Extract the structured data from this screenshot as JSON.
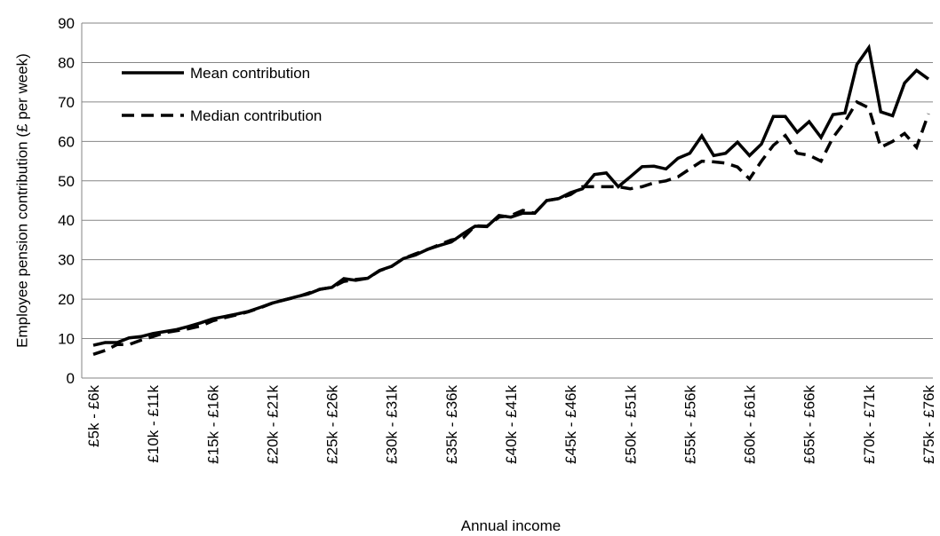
{
  "chart_data": {
    "type": "line",
    "y_label": "Employee pension contribution (£ per week)",
    "x_label": "Annual income",
    "categories": [
      "£5k - £6k",
      null,
      null,
      null,
      null,
      "£10k - £11k",
      null,
      null,
      null,
      null,
      "£15k - £16k",
      null,
      null,
      null,
      null,
      "£20k - £21k",
      null,
      null,
      null,
      null,
      "£25k - £26k",
      null,
      null,
      null,
      null,
      "£30k - £31k",
      null,
      null,
      null,
      null,
      "£35k - £36k",
      null,
      null,
      null,
      null,
      "£40k - £41k",
      null,
      null,
      null,
      null,
      "£45k - £46k",
      null,
      null,
      null,
      null,
      "£50k - £51k",
      null,
      null,
      null,
      null,
      "£55k - £56k",
      null,
      null,
      null,
      null,
      "£60k - £61k",
      null,
      null,
      null,
      null,
      "£65k - £66k",
      null,
      null,
      null,
      null,
      "£70k - £71k",
      null,
      null,
      null,
      null,
      "£75k - £76k"
    ],
    "series": [
      {
        "name": "Mean contribution",
        "color": "#000000",
        "dash": "solid",
        "values": [
          8.3,
          9,
          9,
          10.2,
          10.5,
          11.3,
          11.8,
          12.3,
          13.1,
          14,
          15,
          15.6,
          16.2,
          16.9,
          17.9,
          19,
          19.8,
          20.6,
          21.3,
          22.5,
          23,
          25.2,
          24.8,
          25.3,
          27.3,
          28.3,
          30.3,
          31.2,
          32.6,
          33.6,
          34.5,
          36.6,
          38.5,
          38.4,
          41.2,
          40.8,
          41.8,
          41.8,
          45,
          45.5,
          47,
          48,
          51.6,
          52,
          48.5,
          51,
          53.6,
          53.7,
          53,
          55.7,
          57,
          61.4,
          56.4,
          57,
          59.8,
          56.4,
          59.3,
          66.3,
          66.3,
          62.3,
          65,
          61,
          66.8,
          67.2,
          79.5,
          83.8,
          67.5,
          66.5,
          74.8,
          78,
          75.8
        ]
      },
      {
        "name": "Median contribution",
        "color": "#000000",
        "dash": "dashed",
        "values": [
          6,
          7,
          8.5,
          8.5,
          9.6,
          10.5,
          11.5,
          12,
          12.5,
          13.2,
          14.5,
          15.3,
          16,
          16.8,
          17.8,
          19,
          19.8,
          20.5,
          21.5,
          22.5,
          23,
          24.5,
          25,
          25.3,
          27.2,
          28.3,
          30.3,
          31.5,
          32.6,
          33.8,
          35,
          35.5,
          38.6,
          38.5,
          40.8,
          41.2,
          42.5,
          41.8,
          45,
          45.5,
          46.5,
          48.5,
          48.5,
          48.5,
          48.5,
          48,
          48.5,
          49.5,
          50,
          51,
          53,
          55,
          54.8,
          54.5,
          53.5,
          50.5,
          55,
          59,
          61.5,
          57,
          56.5,
          55,
          61,
          65,
          70,
          68.5,
          58.5,
          60,
          62,
          58.5,
          67
        ]
      }
    ],
    "ylim": [
      0,
      90
    ],
    "yticks": [
      0,
      10,
      20,
      30,
      40,
      50,
      60,
      70,
      80,
      90
    ],
    "grid": true,
    "legend": "upper left"
  }
}
